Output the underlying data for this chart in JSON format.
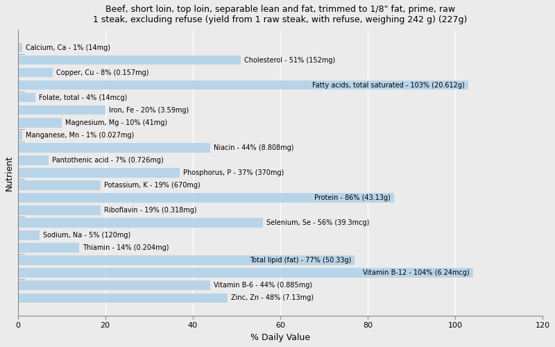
{
  "title": "Beef, short loin, top loin, separable lean and fat, trimmed to 1/8\" fat, prime, raw\n1 steak, excluding refuse (yield from 1 raw steak, with refuse, weighing 242 g) (227g)",
  "xlabel": "% Daily Value",
  "ylabel": "Nutrient",
  "xlim": [
    0,
    120
  ],
  "xticks": [
    0,
    20,
    40,
    60,
    80,
    100,
    120
  ],
  "bar_color": "#b8d4e8",
  "background_color": "#ebebeb",
  "plot_bg_color": "#ebebeb",
  "nutrients": [
    {
      "label": "Calcium, Ca - 1% (14mg)",
      "value": 1
    },
    {
      "label": "Cholesterol - 51% (152mg)",
      "value": 51
    },
    {
      "label": "Copper, Cu - 8% (0.157mg)",
      "value": 8
    },
    {
      "label": "Fatty acids, total saturated - 103% (20.612g)",
      "value": 103
    },
    {
      "label": "Folate, total - 4% (14mcg)",
      "value": 4
    },
    {
      "label": "Iron, Fe - 20% (3.59mg)",
      "value": 20
    },
    {
      "label": "Magnesium, Mg - 10% (41mg)",
      "value": 10
    },
    {
      "label": "Manganese, Mn - 1% (0.027mg)",
      "value": 1
    },
    {
      "label": "Niacin - 44% (8.808mg)",
      "value": 44
    },
    {
      "label": "Pantothenic acid - 7% (0.726mg)",
      "value": 7
    },
    {
      "label": "Phosphorus, P - 37% (370mg)",
      "value": 37
    },
    {
      "label": "Potassium, K - 19% (670mg)",
      "value": 19
    },
    {
      "label": "Protein - 86% (43.13g)",
      "value": 86
    },
    {
      "label": "Riboflavin - 19% (0.318mg)",
      "value": 19
    },
    {
      "label": "Selenium, Se - 56% (39.3mcg)",
      "value": 56
    },
    {
      "label": "Sodium, Na - 5% (120mg)",
      "value": 5
    },
    {
      "label": "Thiamin - 14% (0.204mg)",
      "value": 14
    },
    {
      "label": "Total lipid (fat) - 77% (50.33g)",
      "value": 77
    },
    {
      "label": "Vitamin B-12 - 104% (6.24mcg)",
      "value": 104
    },
    {
      "label": "Vitamin B-6 - 44% (0.885mg)",
      "value": 44
    },
    {
      "label": "Zinc, Zn - 48% (7.13mg)",
      "value": 48
    }
  ],
  "title_fontsize": 9,
  "axis_label_fontsize": 9,
  "bar_label_fontsize": 7,
  "tick_fontsize": 8
}
